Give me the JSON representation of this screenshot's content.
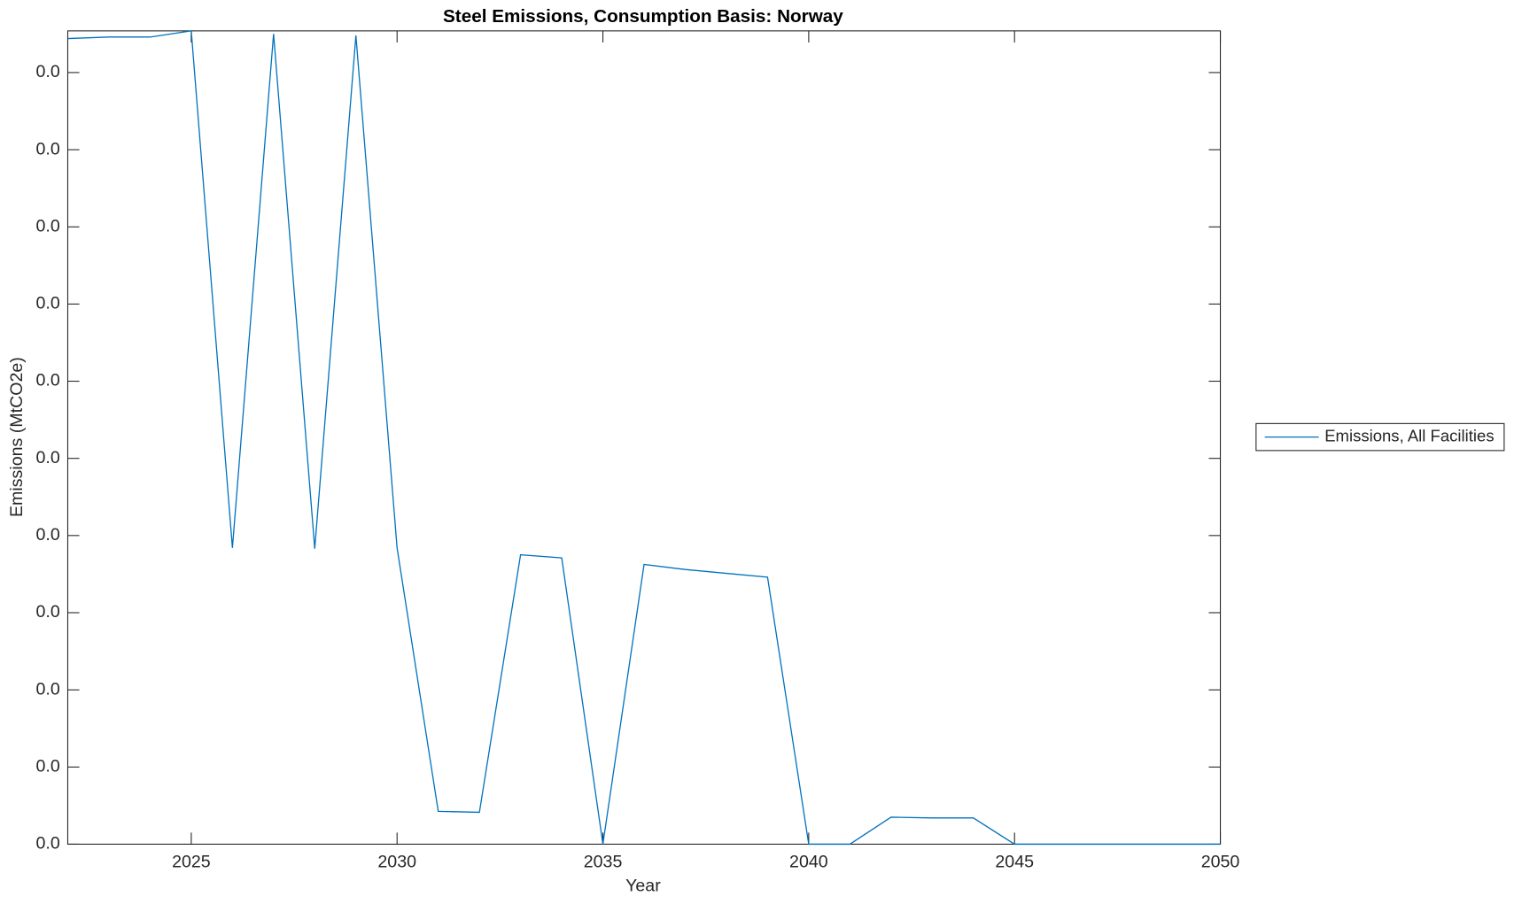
{
  "chart_data": {
    "type": "line",
    "title": "Steel Emissions, Consumption Basis: Norway",
    "xlabel": "Year",
    "ylabel": "Emissions (MtCO2e)",
    "x": [
      2022,
      2023,
      2024,
      2025,
      2026,
      2027,
      2028,
      2029,
      2030,
      2031,
      2032,
      2033,
      2034,
      2035,
      2036,
      2037,
      2038,
      2039,
      2040,
      2041,
      2042,
      2043,
      2044,
      2045,
      2046,
      2047,
      2048,
      2049,
      2050
    ],
    "series": [
      {
        "name": "Emissions, All Facilities",
        "color": "#0072bd",
        "values": [
          0.01044,
          0.01046,
          0.01046,
          0.01054,
          0.00384,
          0.0105,
          0.00383,
          0.01048,
          0.00384,
          0.000425,
          0.000413,
          0.00375,
          0.00371,
          0,
          0.003625,
          0.00356,
          0.00351,
          0.00346,
          0,
          0,
          0.00035,
          0.00034,
          0.00034,
          0,
          0,
          0,
          0,
          0,
          0
        ]
      }
    ],
    "xlim": [
      2022,
      2050
    ],
    "xticks": [
      2025,
      2030,
      2035,
      2040,
      2045,
      2050
    ],
    "ylim": [
      0,
      0.01054
    ],
    "yticks": [
      {
        "value": 0,
        "label": "0.0"
      },
      {
        "value": 0.001,
        "label": "0.0"
      },
      {
        "value": 0.002,
        "label": "0.0"
      },
      {
        "value": 0.003,
        "label": "0.0"
      },
      {
        "value": 0.004,
        "label": "0.0"
      },
      {
        "value": 0.005,
        "label": "0.0"
      },
      {
        "value": 0.006,
        "label": "0.0"
      },
      {
        "value": 0.007,
        "label": "0.0"
      },
      {
        "value": 0.008,
        "label": "0.0"
      },
      {
        "value": 0.009,
        "label": "0.0"
      },
      {
        "value": 0.01,
        "label": "0.0"
      }
    ],
    "grid": false,
    "legend": "right"
  }
}
